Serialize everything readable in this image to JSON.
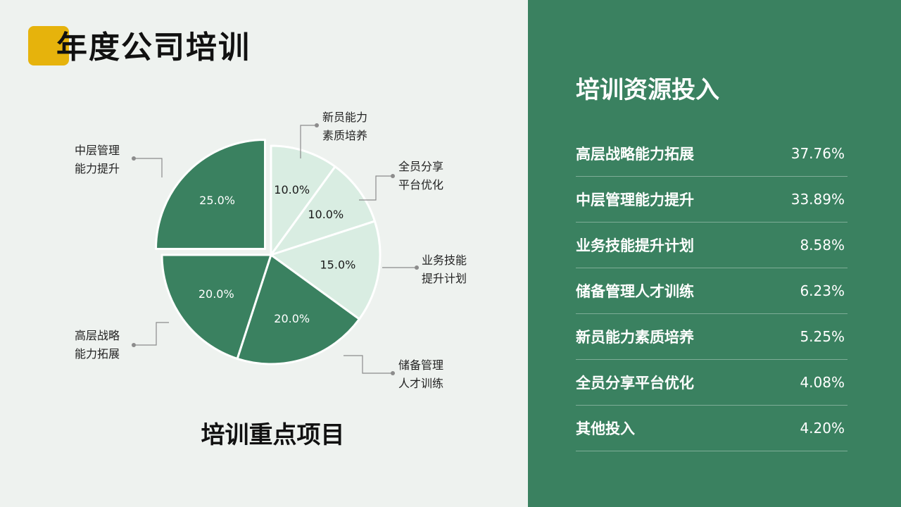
{
  "page": {
    "title": "年度公司培训"
  },
  "colors": {
    "accent": "#e6b30c",
    "dark_green": "#3a8160",
    "light_green": "#d9ede2",
    "panel": "#3a8160",
    "background": "#eef2ef"
  },
  "chart_data": {
    "type": "pie",
    "title": "培训重点项目",
    "start_angle_deg": 0,
    "direction": "clockwise",
    "slices": [
      {
        "label": "新员能力素质培养",
        "value": 10.0,
        "display": "10.0%",
        "shade": "light",
        "callout_lines": [
          "新员能力",
          "素质培养"
        ]
      },
      {
        "label": "全员分享平台优化",
        "value": 10.0,
        "display": "10.0%",
        "shade": "light",
        "callout_lines": [
          "全员分享",
          "平台优化"
        ]
      },
      {
        "label": "业务技能提升计划",
        "value": 15.0,
        "display": "15.0%",
        "shade": "light",
        "callout_lines": [
          "业务技能",
          "提升计划"
        ]
      },
      {
        "label": "储备管理人才训练",
        "value": 20.0,
        "display": "20.0%",
        "shade": "dark",
        "callout_lines": [
          "储备管理",
          "人才训练"
        ]
      },
      {
        "label": "高层战略能力拓展",
        "value": 20.0,
        "display": "20.0%",
        "shade": "dark",
        "callout_lines": [
          "高层战略",
          "能力拓展"
        ]
      },
      {
        "label": "中层管理能力提升",
        "value": 25.0,
        "display": "25.0%",
        "shade": "dark",
        "exploded": true,
        "callout_lines": [
          "中层管理",
          "能力提升"
        ]
      }
    ]
  },
  "resources": {
    "title": "培训资源投入",
    "items": [
      {
        "name": "高层战略能力拓展",
        "value": "37.76%"
      },
      {
        "name": "中层管理能力提升",
        "value": "33.89%"
      },
      {
        "name": "业务技能提升计划",
        "value": "8.58%"
      },
      {
        "name": "储备管理人才训练",
        "value": "6.23%"
      },
      {
        "name": "新员能力素质培养",
        "value": "5.25%"
      },
      {
        "name": "全员分享平台优化",
        "value": "4.08%"
      },
      {
        "name": "其他投入",
        "value": "4.20%"
      }
    ]
  }
}
